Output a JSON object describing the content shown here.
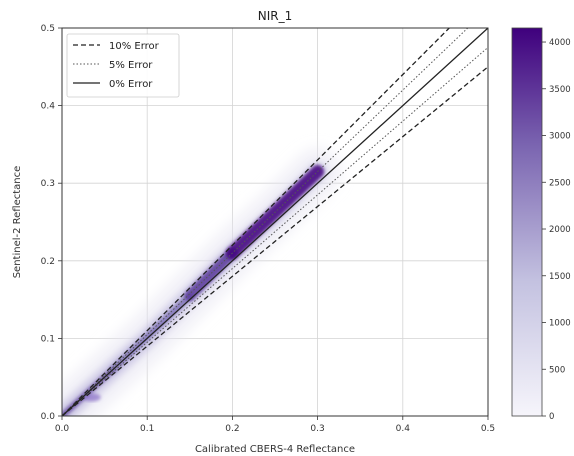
{
  "chart_data": {
    "type": "heatmap",
    "title": "NIR_1",
    "xlabel": "Calibrated CBERS-4 Reflectance",
    "ylabel": "Sentinel-2 Reflectance",
    "xlim": [
      0,
      0.5
    ],
    "ylim": [
      0,
      0.5
    ],
    "xticks": [
      "0.0",
      "0.1",
      "0.2",
      "0.3",
      "0.4",
      "0.5"
    ],
    "yticks": [
      "0.0",
      "0.1",
      "0.2",
      "0.3",
      "0.4",
      "0.5"
    ],
    "grid": true,
    "legend_position": "top-left",
    "reference_lines": [
      {
        "name": "10% Error",
        "style": "dashed",
        "slopes": [
          0.9,
          1.1
        ]
      },
      {
        "name": "5% Error",
        "style": "dotted",
        "slopes": [
          0.95,
          1.05
        ]
      },
      {
        "name": "0% Error",
        "style": "solid",
        "slopes": [
          1.0
        ]
      }
    ],
    "density_trend": {
      "x": [
        0.0,
        0.02,
        0.05,
        0.1,
        0.15,
        0.2,
        0.25,
        0.3
      ],
      "y": [
        0.0,
        0.02,
        0.05,
        0.1,
        0.155,
        0.21,
        0.26,
        0.315
      ]
    },
    "colorbar": {
      "min": 0,
      "max": 4150,
      "ticks": [
        "0",
        "500",
        "1000",
        "1500",
        "2000",
        "2500",
        "3000",
        "3500",
        "4000"
      ],
      "colors": [
        "#f4f4fb",
        "#3f007d"
      ]
    }
  }
}
